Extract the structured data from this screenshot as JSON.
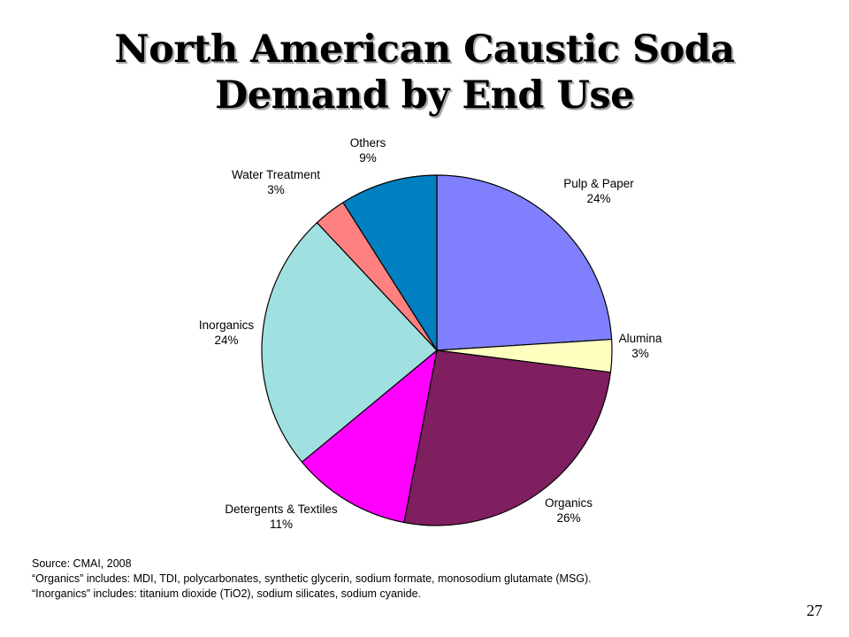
{
  "slide": {
    "title_line1": "North American Caustic Soda",
    "title_line2": "Demand by End Use",
    "source": "Source: CMAI, 2008",
    "note_organics": "“Organics” includes: MDI, TDI, polycarbonates, synthetic glycerin, sodium formate, monosodium glutamate (MSG).",
    "note_inorganics": "“Inorganics” includes: titanium dioxide (TiO2), sodium silicates, sodium cyanide.",
    "page_number": "27"
  },
  "chart_data": {
    "type": "pie",
    "title": "",
    "start_angle_deg": 0,
    "direction": "clockwise",
    "slices": [
      {
        "label": "Pulp & Paper",
        "value": 24,
        "value_label": "24%",
        "color": "#8080FF"
      },
      {
        "label": "Alumina",
        "value": 3,
        "value_label": "3%",
        "color": "#FFFFC0"
      },
      {
        "label": "Organics",
        "value": 26,
        "value_label": "26%",
        "color": "#7F1F5F"
      },
      {
        "label": "Detergents & Textiles",
        "value": 11,
        "value_label": "11%",
        "color": "#FF00FF"
      },
      {
        "label": "Inorganics",
        "value": 24,
        "value_label": "24%",
        "color": "#A0E0E0"
      },
      {
        "label": "Water Treatment",
        "value": 3,
        "value_label": "3%",
        "color": "#FF8080"
      },
      {
        "label": "Others",
        "value": 9,
        "value_label": "9%",
        "color": "#0080C0"
      }
    ]
  }
}
